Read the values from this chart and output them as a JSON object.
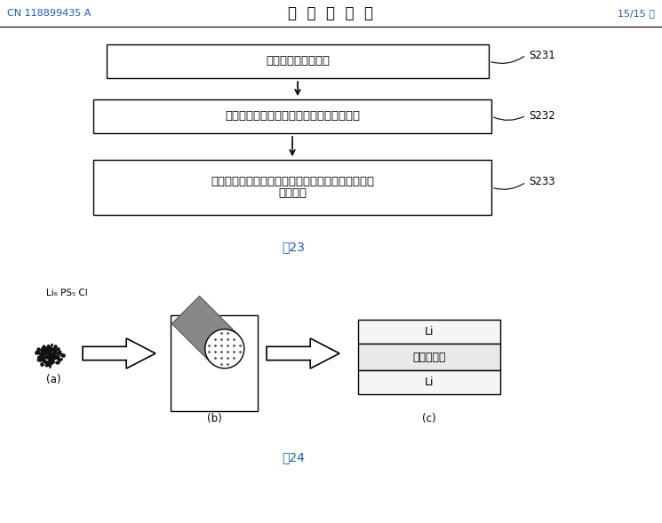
{
  "bg_color": "#ffffff",
  "header_left": "CN 118899435 A",
  "header_center": "说  明  书  附  图",
  "header_right": "15/15 页",
  "header_color": "#1a5cb5",
  "header_center_color": "#000000",
  "box1_text": "形成掎杂硫化物材料",
  "box2_text": "利用掎杂硫化物材料形成硫化物固态电解质",
  "box3_line1": "组装金属锂负极、硫化物固态电解质和正极，得到锂",
  "box3_line2": "离子电池",
  "label_s231": "S231",
  "label_s232": "S232",
  "label_s233": "S233",
  "fig23_label": "剢23",
  "fig24_label": "剢24",
  "label_a": "(a)",
  "label_b": "(b)",
  "label_c": "(c)",
  "li6ps5cl": "Li₆ PS₅ Cl",
  "li_top": "Li",
  "solid_electrolyte": "固态电解质",
  "li_bottom": "Li",
  "text_color": "#000000",
  "box_border_color": "#000000",
  "arrow_color": "#000000",
  "gray_color": "#808080"
}
